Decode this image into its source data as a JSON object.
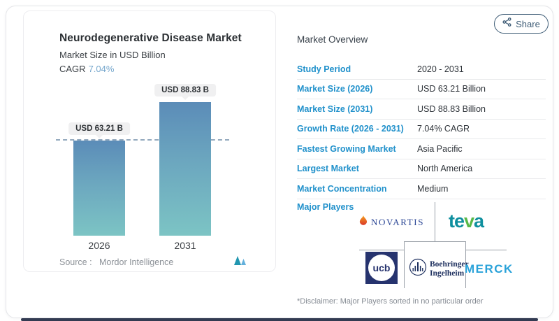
{
  "share": {
    "label": "Share"
  },
  "chart_panel": {
    "title": "Neurodegenerative Disease Market",
    "subtitle": "Market Size in USD Billion",
    "cagr_label": "CAGR",
    "cagr_value": "7.04%",
    "source_label": "Source :",
    "source_value": "Mordor Intelligence"
  },
  "chart_data": {
    "type": "bar",
    "title": "Neurodegenerative Disease Market",
    "ylabel": "Market Size in USD Billion",
    "categories": [
      "2026",
      "2031"
    ],
    "values": [
      63.21,
      88.83
    ],
    "value_labels": [
      "USD 63.21 B",
      "USD 88.83 B"
    ],
    "unit": "USD Billion",
    "cagr_percent": 7.04,
    "reference_line_at": 63.21,
    "bar_gradient": [
      "#5b8cb8",
      "#7cc4c4"
    ],
    "grid": false,
    "legend": false
  },
  "overview": {
    "title": "Market Overview",
    "rows": [
      {
        "label": "Study Period",
        "value": "2020 - 2031"
      },
      {
        "label": "Market Size (2026)",
        "value": "USD 63.21 Billion"
      },
      {
        "label": "Market Size (2031)",
        "value": "USD 88.83 Billion"
      },
      {
        "label": "Growth Rate (2026 - 2031)",
        "value": "7.04% CAGR"
      },
      {
        "label": "Fastest Growing Market",
        "value": "Asia Pacific"
      },
      {
        "label": "Largest Market",
        "value": "North America"
      },
      {
        "label": "Market Concentration",
        "value": "Medium"
      }
    ],
    "major_players_label": "Major Players",
    "players": {
      "novartis": "NOVARTIS",
      "teva_prefix": "te",
      "teva_leaf": "v",
      "teva_suffix": "a",
      "ucb": "ucb",
      "boehringer_line1": "Boehringer",
      "boehringer_line2": "Ingelheim",
      "merck": "MERCK"
    }
  },
  "disclaimer": "*Disclaimer: Major Players sorted in no particular order",
  "colors": {
    "accent_blue": "#2191cb",
    "bar_top": "#5b8cb8",
    "bar_bottom": "#7cc4c4",
    "cagr_value": "#74a6cc",
    "share": "#3e5c76",
    "footer_bar": "#333b52",
    "novartis_blue": "#2c4796",
    "teva_teal": "#0e8f9e",
    "ucb_navy": "#26336e",
    "boehringer_navy": "#1d2f5e",
    "merck_cyan": "#29a2d9"
  }
}
